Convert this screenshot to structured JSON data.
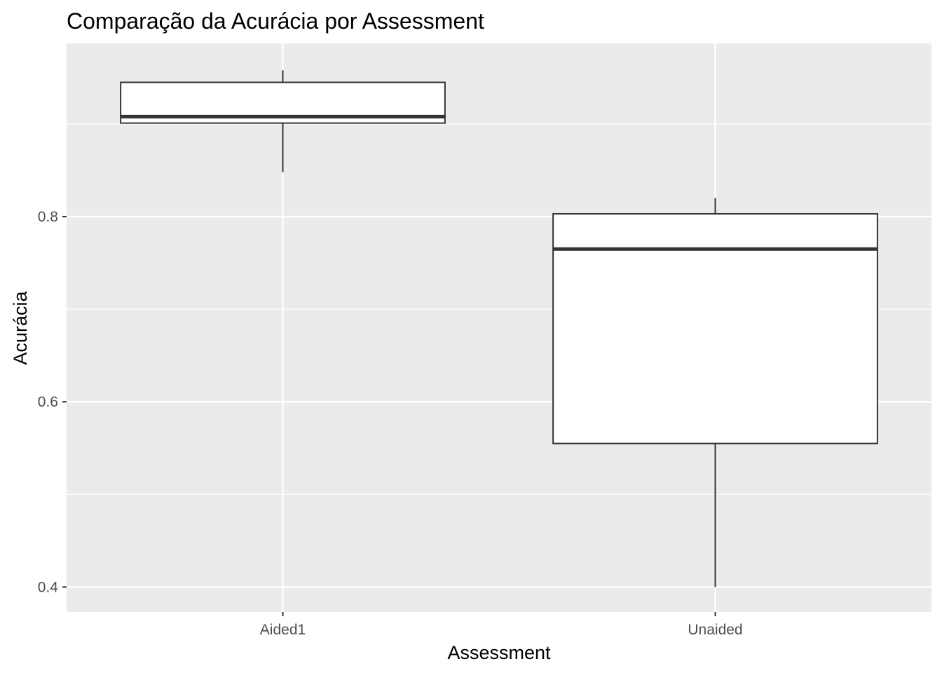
{
  "chart_data": {
    "type": "boxplot",
    "title": "Comparação da Acurácia por Assessment",
    "xlabel": "Assessment",
    "ylabel": "Acurácia",
    "ylim": [
      0.373,
      0.987
    ],
    "yticks": [
      0.4,
      0.6,
      0.8
    ],
    "ytick_labels": [
      "0.4",
      "0.6",
      "0.8"
    ],
    "grid": true,
    "legend": "none",
    "colors": {
      "panel": "#ebebeb",
      "grid": "#ffffff",
      "box_fill": "#ffffff",
      "box_line": "#333333",
      "tick_text": "#4d4d4d"
    },
    "categories": [
      "Aided1",
      "Unaided"
    ],
    "boxes": [
      {
        "category": "Aided1",
        "min": 0.848,
        "q1": 0.901,
        "median": 0.908,
        "q3": 0.945,
        "max": 0.958
      },
      {
        "category": "Unaided",
        "min": 0.4,
        "q1": 0.555,
        "median": 0.765,
        "q3": 0.803,
        "max": 0.82
      }
    ]
  }
}
